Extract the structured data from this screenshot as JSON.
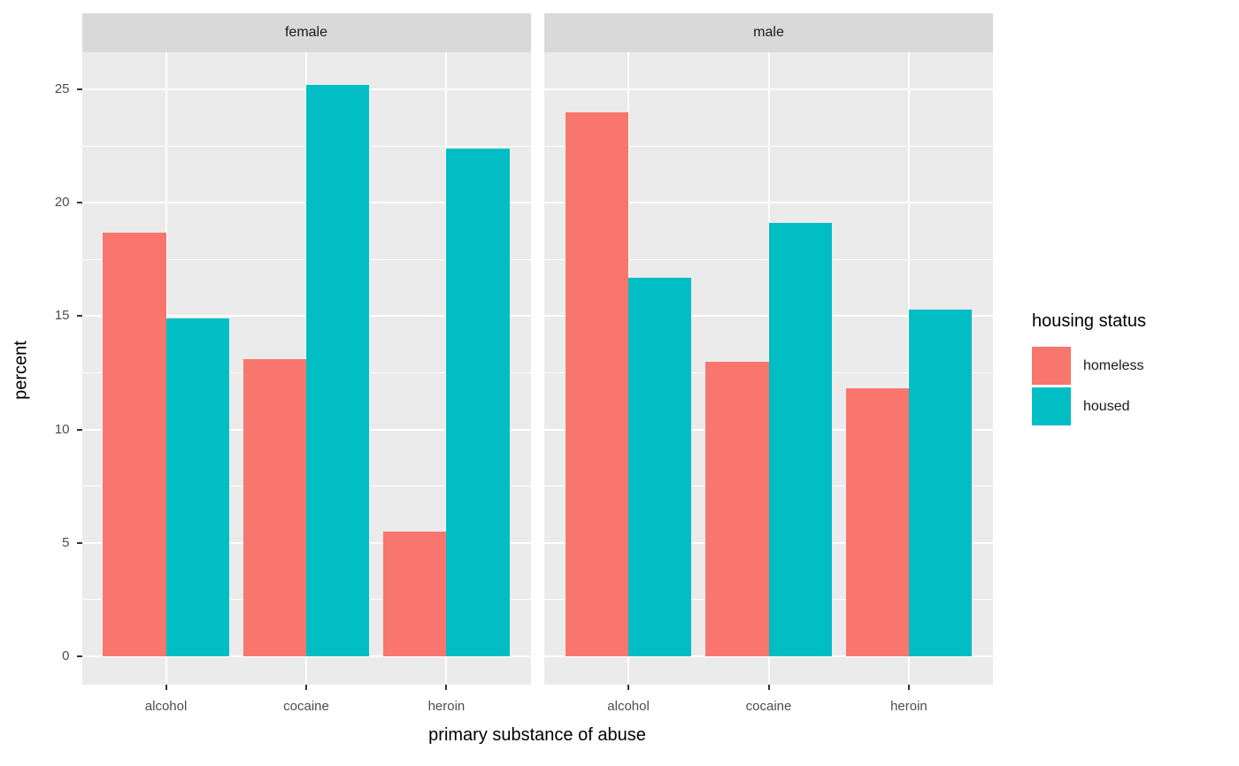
{
  "figure": {
    "facet_labels": [
      "female",
      "male"
    ],
    "y_axis_title": "percent",
    "x_axis_title": "primary substance of abuse",
    "x_categories": [
      "alcohol",
      "cocaine",
      "heroin"
    ],
    "y_tick_labels": [
      "0",
      "5",
      "10",
      "15",
      "20",
      "25"
    ]
  },
  "legend": {
    "title": "housing status",
    "entries": [
      {
        "label": "homeless",
        "color": "#F8766D"
      },
      {
        "label": "housed",
        "color": "#00BEC4"
      }
    ]
  },
  "colors": {
    "homeless": "#F8766D",
    "housed": "#00BEC4",
    "panel_background": "#EBEBEB",
    "strip_background": "#D9D9D9",
    "gridline": "#FFFFFF",
    "axis_text": "#4D4D4D",
    "strip_text": "#1A1A1A",
    "title_text": "#000000"
  },
  "chart_data": {
    "type": "bar",
    "subtype": "grouped-dodged",
    "facet_by": "sex",
    "categories": [
      "alcohol",
      "cocaine",
      "heroin"
    ],
    "facets": [
      {
        "name": "female",
        "series": [
          {
            "name": "homeless",
            "values": [
              18.7,
              13.1,
              5.5
            ]
          },
          {
            "name": "housed",
            "values": [
              14.9,
              25.2,
              22.4
            ]
          }
        ]
      },
      {
        "name": "male",
        "series": [
          {
            "name": "homeless",
            "values": [
              24.0,
              13.0,
              11.8
            ]
          },
          {
            "name": "housed",
            "values": [
              16.7,
              19.1,
              15.3
            ]
          }
        ]
      }
    ],
    "title": "",
    "xlabel": "primary substance of abuse",
    "ylabel": "percent",
    "ylim": [
      -1.3,
      26.5
    ],
    "yticks": [
      0,
      5,
      10,
      15,
      20,
      25
    ],
    "yticks_minor": [
      2.5,
      7.5,
      12.5,
      17.5,
      22.5
    ],
    "grid": "on",
    "legend_title": "housing status",
    "legend_position": "right",
    "theme": "ggplot-grey"
  }
}
